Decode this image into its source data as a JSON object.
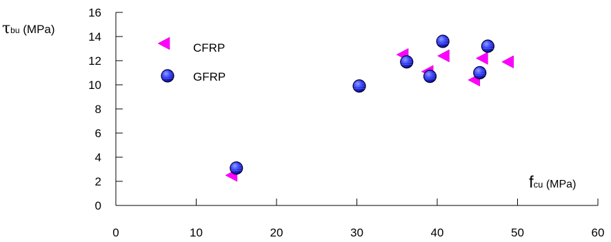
{
  "chart_data": {
    "type": "scatter",
    "title": "",
    "ylabel": {
      "main": "τ",
      "sub": "bu",
      "unit": " (MPa)"
    },
    "xlabel": {
      "main": "f",
      "sub": "cu",
      "unit": " (MPa)"
    },
    "xlim": [
      0,
      60
    ],
    "ylim": [
      0,
      16
    ],
    "xticks": [
      0,
      10,
      20,
      30,
      40,
      50,
      60
    ],
    "yticks": [
      0,
      2,
      4,
      6,
      8,
      10,
      12,
      14,
      16
    ],
    "grid": false,
    "legend_position": "top-left",
    "series": [
      {
        "name": "CFRP",
        "marker": "left-triangle",
        "color": "#ff00ff",
        "points": [
          {
            "x": 14.5,
            "y": 2.5
          },
          {
            "x": 35.8,
            "y": 12.5
          },
          {
            "x": 38.9,
            "y": 11.1
          },
          {
            "x": 40.9,
            "y": 12.4
          },
          {
            "x": 44.7,
            "y": 10.4
          },
          {
            "x": 45.7,
            "y": 12.2
          },
          {
            "x": 48.9,
            "y": 11.9
          }
        ]
      },
      {
        "name": "GFRP",
        "marker": "circle",
        "color": "#3333ff",
        "points": [
          {
            "x": 15.0,
            "y": 3.1
          },
          {
            "x": 30.3,
            "y": 9.9
          },
          {
            "x": 36.2,
            "y": 11.9
          },
          {
            "x": 39.1,
            "y": 10.7
          },
          {
            "x": 40.7,
            "y": 13.6
          },
          {
            "x": 45.3,
            "y": 11.0
          },
          {
            "x": 46.3,
            "y": 13.2
          }
        ]
      }
    ]
  }
}
